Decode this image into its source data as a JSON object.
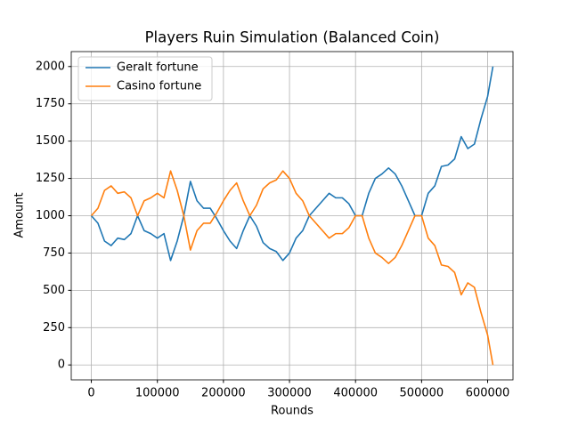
{
  "chart_data": {
    "type": "line",
    "title": "Players Ruin Simulation (Balanced Coin)",
    "xlabel": "Rounds",
    "ylabel": "Amount",
    "x": [
      0,
      10000,
      20000,
      30000,
      40000,
      50000,
      60000,
      70000,
      80000,
      90000,
      100000,
      110000,
      120000,
      130000,
      140000,
      150000,
      160000,
      170000,
      180000,
      190000,
      200000,
      210000,
      220000,
      230000,
      240000,
      250000,
      260000,
      270000,
      280000,
      290000,
      300000,
      310000,
      320000,
      330000,
      340000,
      350000,
      360000,
      370000,
      380000,
      390000,
      400000,
      410000,
      420000,
      430000,
      440000,
      450000,
      460000,
      470000,
      480000,
      490000,
      500000,
      510000,
      520000,
      530000,
      540000,
      550000,
      560000,
      570000,
      580000,
      590000,
      600000,
      608000
    ],
    "series": [
      {
        "name": "Geralt fortune",
        "color": "#1f77b4",
        "values": [
          1000,
          950,
          830,
          800,
          850,
          840,
          880,
          1000,
          900,
          880,
          850,
          880,
          700,
          830,
          1000,
          1230,
          1100,
          1050,
          1050,
          980,
          900,
          830,
          780,
          900,
          1000,
          930,
          820,
          780,
          760,
          700,
          750,
          850,
          900,
          1000,
          1050,
          1100,
          1150,
          1120,
          1120,
          1080,
          1000,
          1000,
          1150,
          1250,
          1280,
          1320,
          1280,
          1200,
          1100,
          1000,
          1000,
          1150,
          1200,
          1330,
          1340,
          1380,
          1530,
          1450,
          1480,
          1650,
          1800,
          2000
        ]
      },
      {
        "name": "Casino fortune",
        "color": "#ff7f0e",
        "values": [
          1000,
          1050,
          1170,
          1200,
          1150,
          1160,
          1120,
          1000,
          1100,
          1120,
          1150,
          1120,
          1300,
          1170,
          1000,
          770,
          900,
          950,
          950,
          1020,
          1100,
          1170,
          1220,
          1100,
          1000,
          1070,
          1180,
          1220,
          1240,
          1300,
          1250,
          1150,
          1100,
          1000,
          950,
          900,
          850,
          880,
          880,
          920,
          1000,
          1000,
          850,
          750,
          720,
          680,
          720,
          800,
          900,
          1000,
          1000,
          850,
          800,
          670,
          660,
          620,
          470,
          550,
          520,
          350,
          200,
          0
        ]
      }
    ],
    "xlim": [
      -30400,
      638400
    ],
    "ylim": [
      -100,
      2100
    ],
    "xticks": [
      0,
      100000,
      200000,
      300000,
      400000,
      500000,
      600000
    ],
    "yticks": [
      0,
      250,
      500,
      750,
      1000,
      1250,
      1500,
      1750,
      2000
    ],
    "grid": true,
    "legend": "upper-left"
  }
}
